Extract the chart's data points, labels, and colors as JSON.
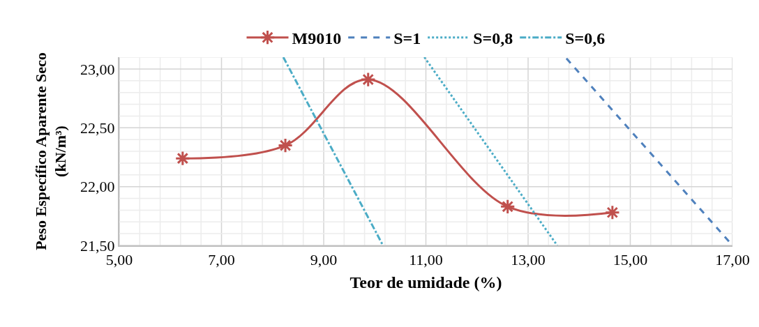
{
  "chart_data": {
    "type": "line",
    "xlabel": "Teor de umidade (%)",
    "ylabel": "Peso Específico Aparente Seco\n(kN/m³)",
    "series": [
      {
        "name": "M9010",
        "color": "#c0504d",
        "x": [
          6.24,
          8.25,
          9.87,
          12.6,
          14.65
        ],
        "values": [
          22.24,
          22.35,
          22.91,
          21.83,
          21.78
        ],
        "marker": "cross",
        "line_style": "solid"
      },
      {
        "name": "S=1",
        "color": "#4f81bd",
        "x": [
          13.75,
          17.0
        ],
        "values": [
          23.09,
          21.5
        ],
        "marker": "none",
        "line_style": "dashed"
      },
      {
        "name": "S=0,8",
        "color": "#4bacc6",
        "x": [
          10.97,
          13.57
        ],
        "values": [
          23.1,
          21.5
        ],
        "marker": "none",
        "line_style": "dotted"
      },
      {
        "name": "S=0,6",
        "color": "#4bacc6",
        "x": [
          8.21,
          10.16
        ],
        "values": [
          23.1,
          21.5
        ],
        "marker": "none",
        "line_style": "dashdot"
      }
    ],
    "xlim": [
      5,
      17
    ],
    "ylim": [
      21.5,
      23.1
    ],
    "xticks": [
      {
        "value": 5,
        "label": "5,00"
      },
      {
        "value": 5.4,
        "label": null
      },
      {
        "value": 5.8,
        "label": null
      },
      {
        "value": 6.2,
        "label": null
      },
      {
        "value": 6.6,
        "label": null
      },
      {
        "value": 7,
        "label": "7,00"
      },
      {
        "value": 7.4,
        "label": null
      },
      {
        "value": 7.8,
        "label": null
      },
      {
        "value": 8.2,
        "label": null
      },
      {
        "value": 8.6,
        "label": null
      },
      {
        "value": 9,
        "label": "9,00"
      },
      {
        "value": 9.4,
        "label": null
      },
      {
        "value": 9.8,
        "label": null
      },
      {
        "value": 10.2,
        "label": null
      },
      {
        "value": 10.6,
        "label": null
      },
      {
        "value": 11,
        "label": "11,00"
      },
      {
        "value": 11.4,
        "label": null
      },
      {
        "value": 11.8,
        "label": null
      },
      {
        "value": 12.2,
        "label": null
      },
      {
        "value": 12.6,
        "label": null
      },
      {
        "value": 13,
        "label": "13,00"
      },
      {
        "value": 13.4,
        "label": null
      },
      {
        "value": 13.8,
        "label": null
      },
      {
        "value": 14.2,
        "label": null
      },
      {
        "value": 14.6,
        "label": null
      },
      {
        "value": 15,
        "label": "15,00"
      },
      {
        "value": 15.4,
        "label": null
      },
      {
        "value": 15.8,
        "label": null
      },
      {
        "value": 16.2,
        "label": null
      },
      {
        "value": 16.6,
        "label": null
      },
      {
        "value": 17,
        "label": "17,00"
      }
    ],
    "yticks": [
      {
        "value": 21.5,
        "label": "21,50"
      },
      {
        "value": 21.6,
        "label": null
      },
      {
        "value": 21.7,
        "label": null
      },
      {
        "value": 21.8,
        "label": null
      },
      {
        "value": 21.9,
        "label": null
      },
      {
        "value": 22,
        "label": "22,00"
      },
      {
        "value": 22.1,
        "label": null
      },
      {
        "value": 22.2,
        "label": null
      },
      {
        "value": 22.3,
        "label": null
      },
      {
        "value": 22.4,
        "label": null
      },
      {
        "value": 22.5,
        "label": "22,50"
      },
      {
        "value": 22.6,
        "label": null
      },
      {
        "value": 22.7,
        "label": null
      },
      {
        "value": 22.8,
        "label": null
      },
      {
        "value": 22.9,
        "label": null
      },
      {
        "value": 23,
        "label": "23,00"
      },
      {
        "value": 23.1,
        "label": null
      }
    ],
    "grid": true,
    "legend": "top"
  }
}
